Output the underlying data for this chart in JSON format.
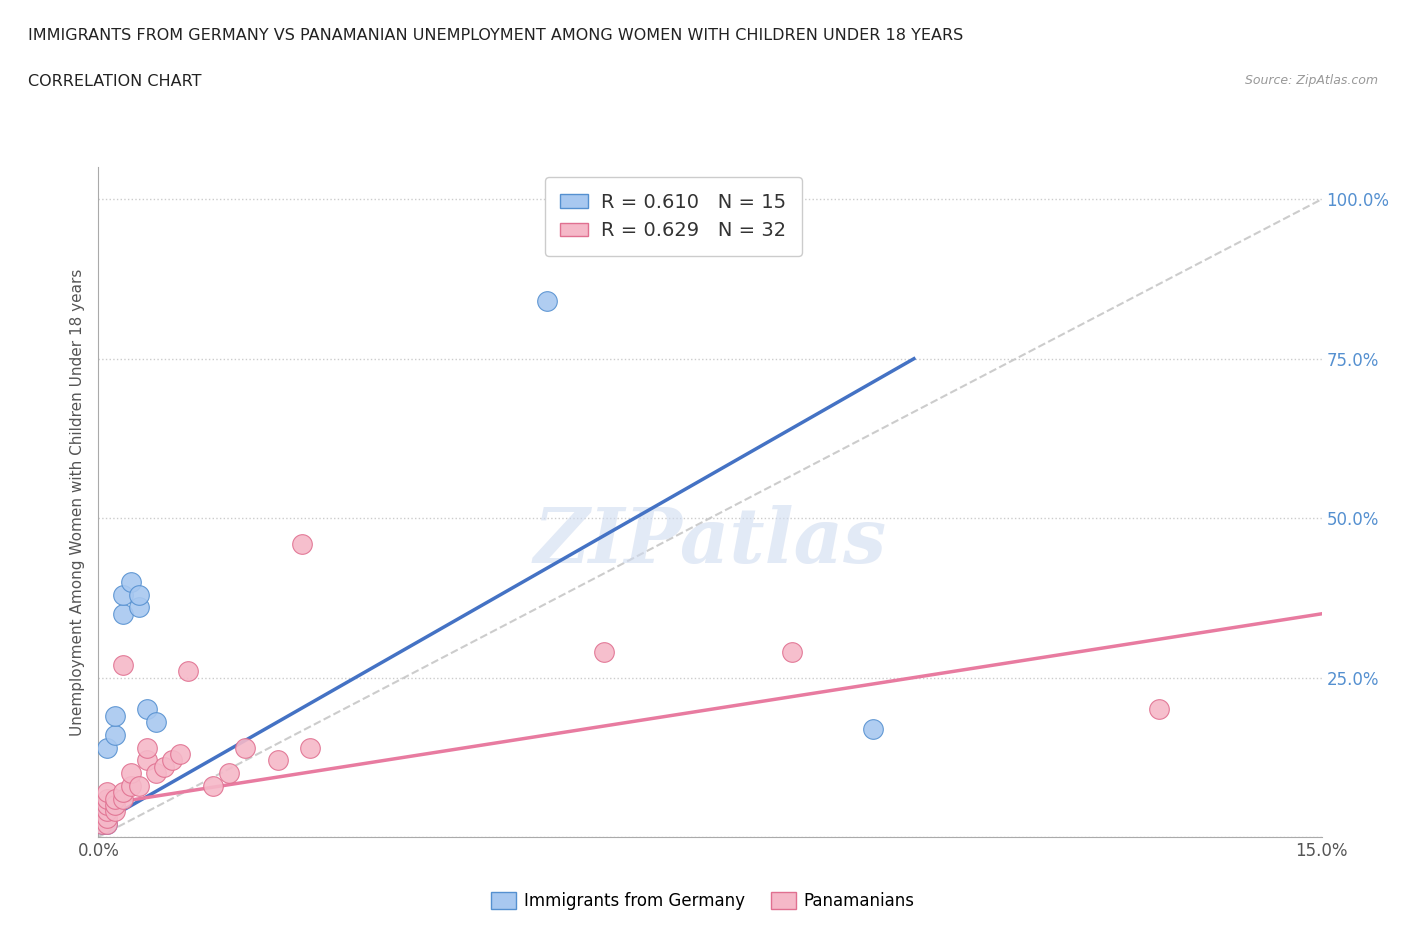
{
  "title_line1": "IMMIGRANTS FROM GERMANY VS PANAMANIAN UNEMPLOYMENT AMONG WOMEN WITH CHILDREN UNDER 18 YEARS",
  "title_line2": "CORRELATION CHART",
  "source": "Source: ZipAtlas.com",
  "ylabel": "Unemployment Among Women with Children Under 18 years",
  "xlim": [
    0.0,
    0.15
  ],
  "ylim": [
    0.0,
    1.05
  ],
  "x_ticks": [
    0.0,
    0.15
  ],
  "x_tick_labels": [
    "0.0%",
    "15.0%"
  ],
  "y_ticks": [
    0.0,
    0.25,
    0.5,
    0.75,
    1.0
  ],
  "y_tick_labels": [
    "",
    "25.0%",
    "50.0%",
    "75.0%",
    "100.0%"
  ],
  "germany_x": [
    0.0005,
    0.001,
    0.001,
    0.001,
    0.002,
    0.002,
    0.003,
    0.003,
    0.004,
    0.005,
    0.005,
    0.006,
    0.007,
    0.055,
    0.095
  ],
  "germany_y": [
    0.02,
    0.02,
    0.04,
    0.14,
    0.16,
    0.19,
    0.35,
    0.38,
    0.4,
    0.36,
    0.38,
    0.2,
    0.18,
    0.84,
    0.17
  ],
  "panama_x": [
    0.0005,
    0.001,
    0.001,
    0.001,
    0.001,
    0.001,
    0.001,
    0.002,
    0.002,
    0.002,
    0.003,
    0.003,
    0.003,
    0.004,
    0.004,
    0.005,
    0.006,
    0.006,
    0.007,
    0.008,
    0.009,
    0.01,
    0.011,
    0.014,
    0.016,
    0.018,
    0.022,
    0.025,
    0.026,
    0.062,
    0.085,
    0.13
  ],
  "panama_y": [
    0.02,
    0.02,
    0.03,
    0.04,
    0.05,
    0.06,
    0.07,
    0.04,
    0.05,
    0.06,
    0.06,
    0.07,
    0.27,
    0.08,
    0.1,
    0.08,
    0.12,
    0.14,
    0.1,
    0.11,
    0.12,
    0.13,
    0.26,
    0.08,
    0.1,
    0.14,
    0.12,
    0.46,
    0.14,
    0.29,
    0.29,
    0.2
  ],
  "R_germany": 0.61,
  "N_germany": 15,
  "R_panama": 0.629,
  "N_panama": 32,
  "germany_line_x": [
    0.0,
    0.1
  ],
  "germany_line_y": [
    0.02,
    0.75
  ],
  "panama_line_x": [
    0.0,
    0.15
  ],
  "panama_line_y": [
    0.05,
    0.35
  ],
  "color_germany_fill": "#A8C8F0",
  "color_panama_fill": "#F5B8C8",
  "color_germany_edge": "#5590D0",
  "color_panama_edge": "#E07090",
  "color_germany_line": "#4472C4",
  "color_panama_line": "#E87BA0",
  "color_reference_line": "#C0C0C0",
  "background_color": "#FFFFFF",
  "legend_label_germany": "Immigrants from Germany",
  "legend_label_panama": "Panamanians"
}
